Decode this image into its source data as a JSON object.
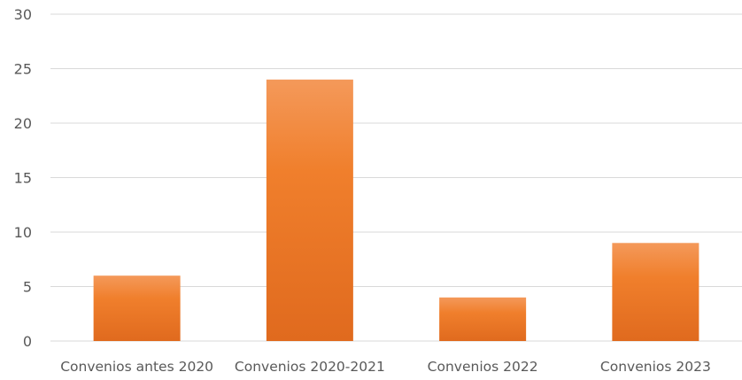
{
  "chart_data": {
    "type": "bar",
    "categories": [
      "Convenios antes 2020",
      "Convenios 2020-2021",
      "Convenios 2022",
      "Convenios 2023"
    ],
    "values": [
      6,
      24,
      4,
      9
    ],
    "ylim": [
      0,
      30
    ],
    "yticks": [
      "0",
      "5",
      "10",
      "15",
      "20",
      "25",
      "30"
    ],
    "grid": true,
    "legend": "none",
    "title": "",
    "xlabel": "",
    "ylabel": "",
    "colors": {
      "bar_top": "#f4995a",
      "bar_mid": "#f07f2c",
      "bar_bottom": "#e06a1e",
      "grid": "#d9d9d9",
      "text": "#595959"
    }
  }
}
